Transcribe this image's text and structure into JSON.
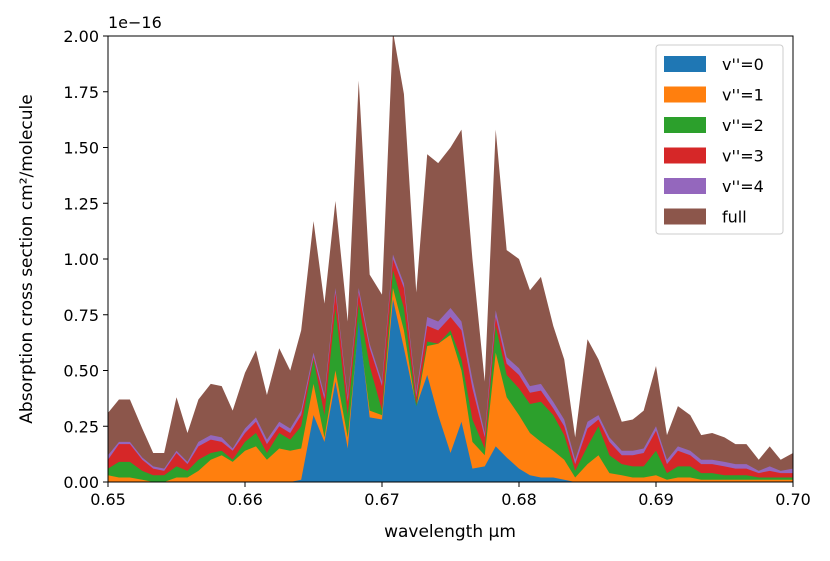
{
  "chart_data": {
    "type": "area",
    "xlabel": "wavelength μm",
    "ylabel": "Absorption cross section cm²/molecule",
    "y_offset_label": "1e−16",
    "xlim": [
      0.65,
      0.7
    ],
    "ylim": [
      0.0,
      2.0
    ],
    "y_scale_factor": 1e-16,
    "xticks": [
      {
        "value": 0.65,
        "label": "0.65"
      },
      {
        "value": 0.66,
        "label": "0.66"
      },
      {
        "value": 0.67,
        "label": "0.67"
      },
      {
        "value": 0.68,
        "label": "0.68"
      },
      {
        "value": 0.69,
        "label": "0.69"
      },
      {
        "value": 0.7,
        "label": "0.70"
      }
    ],
    "yticks": [
      {
        "value": 0.0,
        "label": "0.00"
      },
      {
        "value": 0.25,
        "label": "0.25"
      },
      {
        "value": 0.5,
        "label": "0.50"
      },
      {
        "value": 0.75,
        "label": "0.75"
      },
      {
        "value": 1.0,
        "label": "1.00"
      },
      {
        "value": 1.25,
        "label": "1.25"
      },
      {
        "value": 1.5,
        "label": "1.50"
      },
      {
        "value": 1.75,
        "label": "1.75"
      },
      {
        "value": 2.0,
        "label": "2.00"
      }
    ],
    "grid": false,
    "legend_position": "top-right",
    "stacked": false,
    "x": [
      0.65,
      0.6508,
      0.6516,
      0.6525,
      0.6533,
      0.6541,
      0.655,
      0.6558,
      0.6566,
      0.6575,
      0.6583,
      0.6591,
      0.66,
      0.6608,
      0.6616,
      0.6625,
      0.6633,
      0.6641,
      0.665,
      0.6658,
      0.6666,
      0.6675,
      0.6683,
      0.6691,
      0.67,
      0.6708,
      0.6716,
      0.6725,
      0.6733,
      0.6741,
      0.675,
      0.6758,
      0.6766,
      0.6775,
      0.6783,
      0.6791,
      0.68,
      0.6808,
      0.6816,
      0.6825,
      0.6833,
      0.6841,
      0.685,
      0.6858,
      0.6866,
      0.6875,
      0.6883,
      0.6891,
      0.69,
      0.6908,
      0.6916,
      0.6925,
      0.6933,
      0.6941,
      0.695,
      0.6958,
      0.6966,
      0.6975,
      0.6983,
      0.6991,
      0.7
    ],
    "series": [
      {
        "name": "full",
        "color": "#8c564b",
        "values": [
          0.31,
          0.37,
          0.37,
          0.24,
          0.13,
          0.13,
          0.38,
          0.22,
          0.37,
          0.44,
          0.43,
          0.32,
          0.49,
          0.59,
          0.39,
          0.6,
          0.5,
          0.68,
          1.17,
          0.8,
          1.26,
          0.72,
          1.8,
          0.93,
          0.84,
          2.02,
          1.74,
          0.85,
          1.47,
          1.43,
          1.5,
          1.58,
          1.0,
          0.45,
          1.58,
          1.04,
          1.0,
          0.86,
          0.92,
          0.7,
          0.55,
          0.2,
          0.64,
          0.55,
          0.42,
          0.27,
          0.28,
          0.32,
          0.52,
          0.21,
          0.34,
          0.3,
          0.21,
          0.22,
          0.2,
          0.17,
          0.17,
          0.1,
          0.16,
          0.1,
          0.13
        ]
      },
      {
        "name": "v''=4",
        "color": "#9467bd",
        "values": [
          0.12,
          0.18,
          0.18,
          0.11,
          0.07,
          0.06,
          0.14,
          0.09,
          0.18,
          0.21,
          0.2,
          0.15,
          0.24,
          0.29,
          0.19,
          0.27,
          0.24,
          0.32,
          0.58,
          0.39,
          0.87,
          0.38,
          0.87,
          0.62,
          0.45,
          1.02,
          0.89,
          0.4,
          0.74,
          0.72,
          0.78,
          0.72,
          0.46,
          0.22,
          0.77,
          0.56,
          0.51,
          0.43,
          0.44,
          0.36,
          0.28,
          0.1,
          0.27,
          0.3,
          0.2,
          0.14,
          0.14,
          0.15,
          0.25,
          0.1,
          0.16,
          0.14,
          0.1,
          0.1,
          0.09,
          0.08,
          0.08,
          0.05,
          0.07,
          0.05,
          0.06
        ]
      },
      {
        "name": "v''=3",
        "color": "#d62728",
        "values": [
          0.1,
          0.17,
          0.17,
          0.1,
          0.06,
          0.05,
          0.13,
          0.08,
          0.16,
          0.19,
          0.18,
          0.14,
          0.22,
          0.27,
          0.17,
          0.25,
          0.22,
          0.3,
          0.56,
          0.37,
          0.85,
          0.36,
          0.85,
          0.6,
          0.43,
          1.0,
          0.87,
          0.38,
          0.7,
          0.68,
          0.74,
          0.68,
          0.42,
          0.2,
          0.74,
          0.53,
          0.48,
          0.4,
          0.41,
          0.33,
          0.25,
          0.08,
          0.24,
          0.28,
          0.18,
          0.12,
          0.12,
          0.13,
          0.23,
          0.08,
          0.14,
          0.12,
          0.08,
          0.08,
          0.07,
          0.06,
          0.06,
          0.04,
          0.05,
          0.04,
          0.04
        ]
      },
      {
        "name": "v''=2",
        "color": "#2ca02c",
        "values": [
          0.06,
          0.09,
          0.09,
          0.05,
          0.03,
          0.03,
          0.07,
          0.05,
          0.1,
          0.13,
          0.14,
          0.1,
          0.18,
          0.22,
          0.13,
          0.22,
          0.19,
          0.25,
          0.55,
          0.3,
          0.78,
          0.3,
          0.8,
          0.52,
          0.32,
          0.95,
          0.78,
          0.35,
          0.63,
          0.62,
          0.68,
          0.55,
          0.28,
          0.15,
          0.7,
          0.48,
          0.42,
          0.35,
          0.36,
          0.3,
          0.21,
          0.05,
          0.16,
          0.25,
          0.12,
          0.08,
          0.07,
          0.07,
          0.14,
          0.04,
          0.07,
          0.07,
          0.04,
          0.04,
          0.03,
          0.03,
          0.03,
          0.02,
          0.02,
          0.02,
          0.02
        ]
      },
      {
        "name": "v''=1",
        "color": "#ff7f0e",
        "values": [
          0.03,
          0.02,
          0.02,
          0.01,
          0.0,
          0.0,
          0.02,
          0.02,
          0.05,
          0.1,
          0.12,
          0.09,
          0.14,
          0.16,
          0.1,
          0.15,
          0.14,
          0.15,
          0.44,
          0.2,
          0.5,
          0.2,
          0.7,
          0.32,
          0.3,
          0.87,
          0.68,
          0.33,
          0.61,
          0.62,
          0.66,
          0.5,
          0.18,
          0.12,
          0.58,
          0.38,
          0.3,
          0.22,
          0.18,
          0.14,
          0.1,
          0.02,
          0.08,
          0.12,
          0.04,
          0.03,
          0.02,
          0.02,
          0.03,
          0.01,
          0.02,
          0.02,
          0.01,
          0.01,
          0.01,
          0.01,
          0.01,
          0.01,
          0.01,
          0.01,
          0.01
        ]
      },
      {
        "name": "v''=0",
        "color": "#1f77b4",
        "values": [
          0.0,
          0.0,
          0.0,
          0.0,
          0.0,
          0.0,
          0.0,
          0.0,
          0.0,
          0.0,
          0.0,
          0.0,
          0.0,
          0.0,
          0.0,
          0.0,
          0.0,
          0.01,
          0.3,
          0.18,
          0.45,
          0.15,
          0.72,
          0.29,
          0.28,
          0.82,
          0.6,
          0.34,
          0.48,
          0.3,
          0.13,
          0.27,
          0.06,
          0.07,
          0.16,
          0.11,
          0.06,
          0.03,
          0.02,
          0.02,
          0.01,
          0.0,
          0.0,
          0.0,
          0.0,
          0.0,
          0.0,
          0.0,
          0.0,
          0.0,
          0.0,
          0.0,
          0.0,
          0.0,
          0.0,
          0.0,
          0.0,
          0.0,
          0.0,
          0.0,
          0.0
        ]
      }
    ],
    "legend": [
      {
        "name": "v''=0",
        "color": "#1f77b4"
      },
      {
        "name": "v''=1",
        "color": "#ff7f0e"
      },
      {
        "name": "v''=2",
        "color": "#2ca02c"
      },
      {
        "name": "v''=3",
        "color": "#d62728"
      },
      {
        "name": "v''=4",
        "color": "#9467bd"
      },
      {
        "name": "full",
        "color": "#8c564b"
      }
    ]
  }
}
